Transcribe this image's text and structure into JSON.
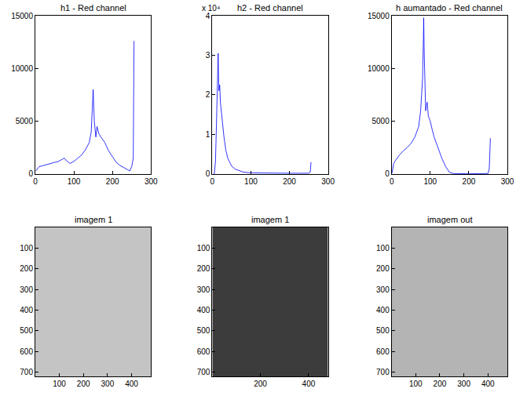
{
  "chart_data": [
    {
      "type": "line",
      "title": "h1 - Red channel",
      "color": "#0000ff",
      "x": [
        1,
        10,
        20,
        30,
        40,
        50,
        60,
        70,
        75,
        80,
        90,
        100,
        110,
        120,
        130,
        140,
        145,
        150,
        153,
        157,
        160,
        165,
        170,
        180,
        190,
        200,
        210,
        220,
        230,
        240,
        245,
        250,
        254,
        256
      ],
      "values": [
        300,
        700,
        800,
        900,
        1000,
        1100,
        1200,
        1400,
        1500,
        1300,
        1000,
        1200,
        1500,
        1800,
        2300,
        3000,
        4000,
        8000,
        5000,
        3500,
        4500,
        3800,
        3500,
        3000,
        2200,
        1600,
        1100,
        800,
        600,
        400,
        300,
        700,
        1500,
        12600
      ],
      "xlim": [
        0,
        300
      ],
      "xticks": [
        0,
        100,
        200,
        300
      ],
      "ylim": [
        0,
        15000
      ],
      "yticks": [
        0,
        5000,
        10000,
        15000
      ]
    },
    {
      "type": "line",
      "title": "h2 - Red channel",
      "annotations": [
        "x 10⁴"
      ],
      "color": "#0000ff",
      "x": [
        5,
        8,
        10,
        12,
        15,
        17,
        19,
        21,
        23,
        25,
        28,
        30,
        35,
        40,
        45,
        50,
        60,
        70,
        80,
        100,
        150,
        200,
        250,
        254,
        256
      ],
      "values": [
        0,
        0.3,
        1.0,
        2.0,
        3.05,
        2.1,
        2.25,
        1.8,
        1.6,
        1.4,
        1.1,
        0.95,
        0.6,
        0.4,
        0.3,
        0.2,
        0.12,
        0.08,
        0.05,
        0.03,
        0.02,
        0.02,
        0.02,
        0.05,
        0.3
      ],
      "xlim": [
        0,
        300
      ],
      "xticks": [
        0,
        100,
        200,
        300
      ],
      "ylim": [
        0,
        4
      ],
      "yticks": [
        0,
        1,
        2,
        3,
        4
      ]
    },
    {
      "type": "line",
      "title": "h aumantado - Red channel",
      "color": "#0000ff",
      "x": [
        1,
        5,
        10,
        20,
        30,
        40,
        50,
        60,
        65,
        70,
        75,
        78,
        80,
        82,
        83,
        84,
        86,
        88,
        90,
        92,
        95,
        100,
        105,
        110,
        120,
        130,
        140,
        150,
        160,
        200,
        250,
        253,
        256
      ],
      "values": [
        100,
        1000,
        1300,
        1800,
        2200,
        2500,
        2900,
        3500,
        4000,
        4500,
        6000,
        7500,
        9000,
        12500,
        14800,
        12000,
        9000,
        6000,
        6500,
        6800,
        5500,
        5000,
        4200,
        3500,
        2500,
        1500,
        700,
        150,
        50,
        20,
        50,
        500,
        3400
      ],
      "xlim": [
        0,
        300
      ],
      "xticks": [
        0,
        100,
        200,
        300
      ],
      "ylim": [
        0,
        15000
      ],
      "yticks": [
        0,
        5000,
        10000,
        15000
      ]
    },
    {
      "type": "image",
      "title": "imagem 1",
      "color": "#c4c4c4",
      "xlim": [
        0.5,
        480.5
      ],
      "xticks": [
        100,
        200,
        300,
        400
      ],
      "ylim": [
        720.5,
        0.5
      ],
      "yticks": [
        100,
        200,
        300,
        400,
        500,
        600,
        700
      ]
    },
    {
      "type": "image",
      "title": "imagem 1",
      "color": "#3c3c3c",
      "xlim": [
        0.5,
        480.5
      ],
      "xticks": [
        200,
        400
      ],
      "ylim": [
        720.5,
        0.5
      ],
      "yticks": [
        100,
        200,
        300,
        400,
        500,
        600,
        700
      ]
    },
    {
      "type": "image",
      "title": "imagem out",
      "color": "#b4b4b4",
      "xlim": [
        0.5,
        480.5
      ],
      "xticks": [
        100,
        200,
        300,
        400
      ],
      "ylim": [
        720.5,
        0.5
      ],
      "yticks": [
        100,
        200,
        300,
        400,
        500,
        600,
        700
      ]
    }
  ]
}
